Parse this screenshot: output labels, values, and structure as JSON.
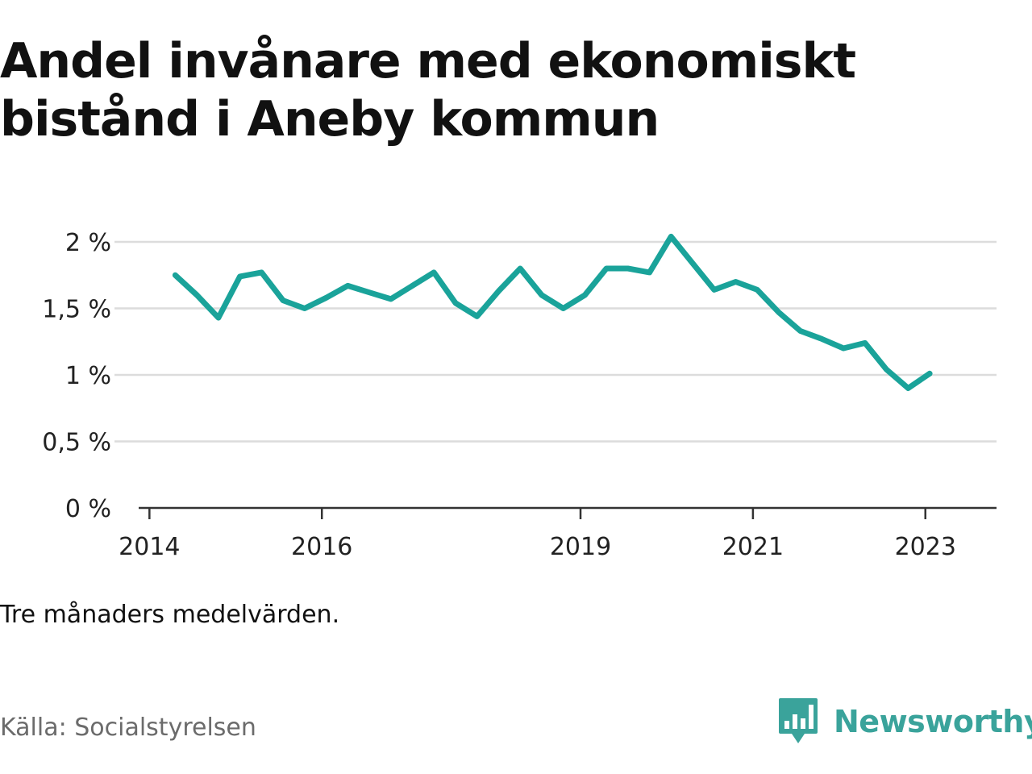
{
  "title": "Andel invånare med ekonomiskt bistånd i Aneby kommun",
  "note": "Tre månaders medelvärden.",
  "source": "Källa: Socialstyrelsen",
  "brand": {
    "name": "Newsworthy",
    "icon": "newsworthy-logo-icon",
    "color": "#3aa39b"
  },
  "chart_data": {
    "type": "line",
    "x_unit": "year",
    "x_ticks": [
      2014,
      2016,
      2019,
      2021,
      2023
    ],
    "y_ticks": [
      {
        "value": 0,
        "label": "0 %"
      },
      {
        "value": 0.5,
        "label": "0,5 %"
      },
      {
        "value": 1,
        "label": "1 %"
      },
      {
        "value": 1.5,
        "label": "1,5 %"
      },
      {
        "value": 2,
        "label": "2 %"
      }
    ],
    "ylim": [
      0,
      2.1
    ],
    "grid": true,
    "line_color": "#1aa39a",
    "series": [
      {
        "x": [
          2014.3,
          2014.55,
          2014.8,
          2015.05,
          2015.3,
          2015.55,
          2015.8,
          2016.05,
          2016.3,
          2016.55,
          2016.8,
          2017.05,
          2017.3,
          2017.55,
          2017.8,
          2018.05,
          2018.3,
          2018.55,
          2018.8,
          2019.05,
          2019.3,
          2019.55,
          2019.8,
          2020.05,
          2020.3,
          2020.55,
          2020.8,
          2021.05,
          2021.3,
          2021.55,
          2021.8,
          2022.05,
          2022.3,
          2022.55,
          2022.8,
          2023.05
        ],
        "values": [
          1.75,
          1.6,
          1.43,
          1.74,
          1.77,
          1.56,
          1.5,
          1.58,
          1.67,
          1.62,
          1.57,
          1.67,
          1.77,
          1.54,
          1.44,
          1.63,
          1.8,
          1.6,
          1.5,
          1.6,
          1.8,
          1.8,
          1.77,
          2.04,
          1.84,
          1.64,
          1.7,
          1.64,
          1.47,
          1.33,
          1.27,
          1.2,
          1.24,
          1.04,
          0.9,
          1.01
        ]
      }
    ]
  }
}
